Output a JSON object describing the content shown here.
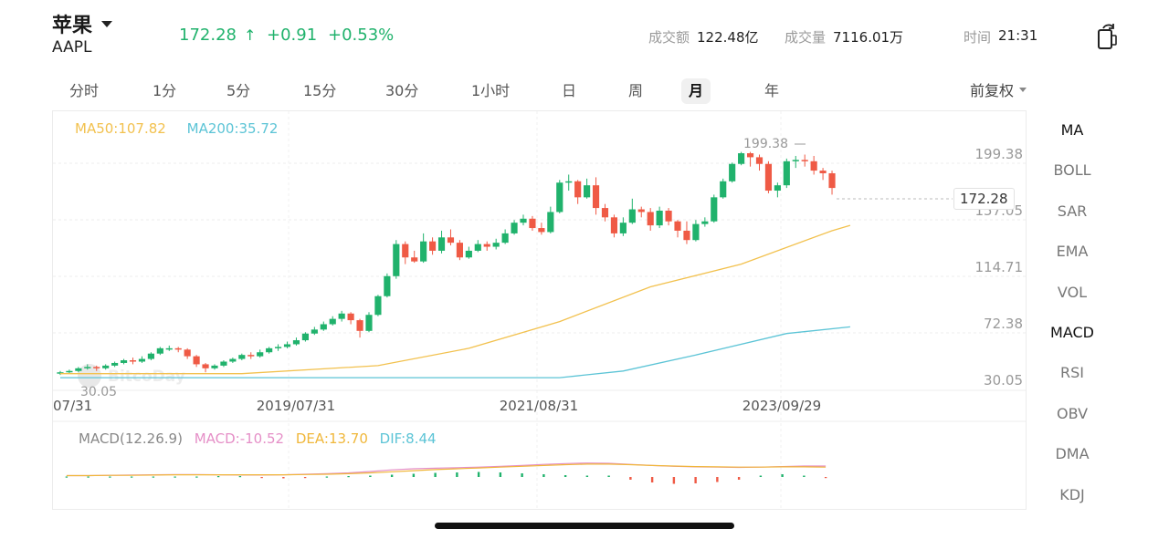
{
  "header": {
    "name": "苹果",
    "code": "AAPL",
    "price": "172.28",
    "arrow": "↑",
    "change": "+0.91",
    "change_pct": "+0.53%",
    "turnover_label": "成交额",
    "turnover_value": "122.48亿",
    "volume_label": "成交量",
    "volume_value": "7116.01万",
    "time_label": "时间",
    "time_value": "21:31"
  },
  "periods": [
    "分时",
    "1分",
    "5分",
    "15分",
    "30分",
    "1小时",
    "日",
    "周",
    "月",
    "年"
  ],
  "active_period": "月",
  "adjust_label": "前复权",
  "indicators": [
    "MA",
    "BOLL",
    "SAR",
    "EMA",
    "VOL",
    "MACD",
    "RSI",
    "OBV",
    "DMA",
    "KDJ"
  ],
  "active_indicators": [
    "MA",
    "MACD"
  ],
  "main_legend": {
    "ma50": "MA50:107.82",
    "ma200": "MA200:35.72"
  },
  "sub_legend": {
    "title": "MACD(12.26.9)",
    "macd": "MACD:-10.52",
    "dea": "DEA:13.70",
    "dif": "DIF:8.44"
  },
  "colors": {
    "up": "#20b26c",
    "down": "#ef5a45",
    "ma50": "#f2c14e",
    "ma200": "#5cc4d6",
    "macd_label": "#e58fc7",
    "dea_label": "#f0b73a",
    "dif_label": "#5cc4d6"
  },
  "watermark": "BitcoDay",
  "chart_data": {
    "type": "candlestick",
    "y_axis_labels": [
      "199.38",
      "157.05",
      "114.71",
      "72.38",
      "30.05"
    ],
    "ylim": [
      30.05,
      199.38
    ],
    "x_axis_labels": [
      "07/31",
      "2019/07/31",
      "2021/08/31",
      "2023/09/29"
    ],
    "high_marker": "199.38",
    "low_marker": "30.05",
    "current_price": "172.28",
    "candles": [
      [
        33,
        34,
        32,
        35
      ],
      [
        34,
        35,
        33,
        36
      ],
      [
        35,
        37,
        34,
        38
      ],
      [
        37,
        38,
        36,
        40
      ],
      [
        38,
        37,
        35,
        39
      ],
      [
        37,
        39,
        36,
        40
      ],
      [
        39,
        41,
        38,
        42
      ],
      [
        41,
        43,
        40,
        44
      ],
      [
        43,
        42,
        40,
        45
      ],
      [
        42,
        44,
        41,
        46
      ],
      [
        44,
        48,
        43,
        49
      ],
      [
        48,
        52,
        47,
        53
      ],
      [
        52,
        52,
        50,
        54
      ],
      [
        52,
        51,
        49,
        53
      ],
      [
        51,
        46,
        44,
        52
      ],
      [
        46,
        40,
        38,
        47
      ],
      [
        40,
        37,
        34,
        41
      ],
      [
        37,
        39,
        36,
        40
      ],
      [
        39,
        42,
        38,
        43
      ],
      [
        42,
        44,
        41,
        45
      ],
      [
        44,
        47,
        43,
        48
      ],
      [
        47,
        46,
        44,
        49
      ],
      [
        46,
        49,
        45,
        51
      ],
      [
        49,
        52,
        48,
        53
      ],
      [
        52,
        53,
        50,
        55
      ],
      [
        53,
        55,
        52,
        57
      ],
      [
        55,
        58,
        54,
        60
      ],
      [
        58,
        63,
        57,
        64
      ],
      [
        63,
        66,
        62,
        68
      ],
      [
        66,
        70,
        65,
        72
      ],
      [
        70,
        74,
        69,
        76
      ],
      [
        74,
        78,
        72,
        80
      ],
      [
        78,
        73,
        70,
        79
      ],
      [
        73,
        65,
        60,
        74
      ],
      [
        65,
        77,
        64,
        79
      ],
      [
        77,
        91,
        76,
        92
      ],
      [
        91,
        106,
        90,
        108
      ],
      [
        106,
        130,
        104,
        133
      ],
      [
        130,
        120,
        115,
        132
      ],
      [
        120,
        117,
        116,
        125
      ],
      [
        117,
        132,
        116,
        138
      ],
      [
        132,
        125,
        122,
        135
      ],
      [
        125,
        135,
        123,
        140
      ],
      [
        135,
        131,
        129,
        141
      ],
      [
        131,
        120,
        118,
        133
      ],
      [
        120,
        125,
        119,
        128
      ],
      [
        125,
        130,
        124,
        133
      ],
      [
        130,
        128,
        125,
        132
      ],
      [
        128,
        131,
        126,
        134
      ],
      [
        131,
        138,
        130,
        141
      ],
      [
        138,
        146,
        137,
        148
      ],
      [
        146,
        149,
        144,
        152
      ],
      [
        149,
        142,
        140,
        151
      ],
      [
        142,
        139,
        137,
        146
      ],
      [
        139,
        154,
        138,
        158
      ],
      [
        154,
        176,
        153,
        178
      ],
      [
        176,
        177,
        170,
        182
      ],
      [
        177,
        165,
        160,
        178
      ],
      [
        165,
        174,
        164,
        179
      ],
      [
        174,
        157,
        152,
        180
      ],
      [
        157,
        150,
        147,
        160
      ],
      [
        150,
        138,
        135,
        152
      ],
      [
        138,
        146,
        136,
        150
      ],
      [
        146,
        156,
        145,
        164
      ],
      [
        156,
        154,
        150,
        158
      ],
      [
        154,
        144,
        140,
        157
      ],
      [
        144,
        155,
        142,
        158
      ],
      [
        155,
        147,
        144,
        157
      ],
      [
        147,
        140,
        135,
        148
      ],
      [
        140,
        133,
        130,
        147
      ],
      [
        133,
        145,
        132,
        148
      ],
      [
        145,
        147,
        143,
        150
      ],
      [
        147,
        165,
        146,
        167
      ],
      [
        165,
        177,
        164,
        179
      ],
      [
        177,
        190,
        176,
        191
      ],
      [
        190,
        198,
        189,
        199
      ],
      [
        198,
        195,
        188,
        199
      ],
      [
        195,
        190,
        185,
        197
      ],
      [
        190,
        170,
        168,
        192
      ],
      [
        170,
        174,
        165,
        176
      ],
      [
        174,
        192,
        172,
        194
      ],
      [
        192,
        193,
        187,
        196
      ],
      [
        193,
        192,
        188,
        197
      ],
      [
        192,
        185,
        182,
        196
      ],
      [
        185,
        183,
        178,
        187
      ],
      [
        183,
        172,
        167,
        185
      ]
    ],
    "ma50": [
      [
        0,
        33
      ],
      [
        20,
        33
      ],
      [
        35,
        39
      ],
      [
        45,
        52
      ],
      [
        55,
        72
      ],
      [
        65,
        98
      ],
      [
        75,
        115
      ],
      [
        85,
        140
      ],
      [
        87,
        144
      ]
    ],
    "ma200": [
      [
        0,
        30
      ],
      [
        55,
        30
      ],
      [
        62,
        35
      ],
      [
        70,
        47
      ],
      [
        80,
        63
      ],
      [
        87,
        68
      ]
    ],
    "macd": {
      "dif": [
        0.5,
        0.5,
        0.6,
        0.7,
        0.8,
        0.9,
        0.9,
        0.8,
        0.7,
        0.7,
        0.8,
        1.0,
        1.2,
        1.5,
        2.0,
        2.6,
        3.0,
        3.2,
        3.4,
        3.6,
        3.9,
        4.2,
        4.6,
        4.9,
        5.1,
        5.0,
        4.6,
        4.2,
        3.9,
        3.7,
        3.6,
        3.5,
        3.6,
        3.8,
        4.0,
        4.0
      ],
      "dea": [
        0.5,
        0.5,
        0.6,
        0.6,
        0.7,
        0.8,
        0.8,
        0.8,
        0.8,
        0.8,
        0.8,
        0.9,
        1.0,
        1.2,
        1.5,
        1.9,
        2.3,
        2.7,
        3.0,
        3.3,
        3.6,
        3.9,
        4.2,
        4.5,
        4.7,
        4.7,
        4.5,
        4.2,
        4.0,
        3.8,
        3.7,
        3.6,
        3.6,
        3.7,
        3.7,
        3.6
      ],
      "hist": [
        0.1,
        0.1,
        0.1,
        0.1,
        0.1,
        0.1,
        0.1,
        0.2,
        0.2,
        -0.2,
        -0.3,
        -0.2,
        0.1,
        0.2,
        0.3,
        0.5,
        0.7,
        0.9,
        1.0,
        1.1,
        1.0,
        0.8,
        0.6,
        0.4,
        0.3,
        0.3,
        -0.6,
        -1.2,
        -1.5,
        -1.4,
        -1.1,
        -0.6,
        0.3,
        0.6,
        0.3,
        -0.2
      ]
    }
  }
}
